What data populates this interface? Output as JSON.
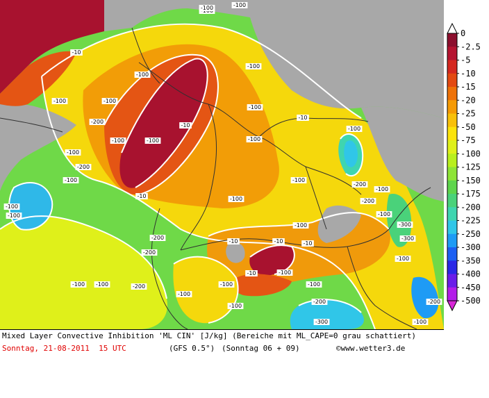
{
  "legend": {
    "labels": [
      "0",
      "-2.5",
      "-5",
      "-10",
      "-15",
      "-20",
      "-25",
      "-50",
      "-75",
      "-100",
      "-125",
      "-150",
      "-175",
      "-200",
      "-225",
      "-250",
      "-300",
      "-350",
      "-400",
      "-450",
      "-500"
    ],
    "colors": [
      "#8c0f2e",
      "#b51431",
      "#d42820",
      "#e34a12",
      "#ee7208",
      "#f59a05",
      "#f8c00a",
      "#fbe30b",
      "#dff01a",
      "#b8ef1e",
      "#8ee437",
      "#5ed54c",
      "#4ad27a",
      "#3fd5b0",
      "#30c6e8",
      "#1e9bf5",
      "#1c5ff2",
      "#2a28e6",
      "#6b1de8",
      "#b31de8",
      "#d826d8"
    ]
  },
  "map": {
    "contour_labels": [
      {
        "text": "-10"
      },
      {
        "text": "-100"
      },
      {
        "text": "-100"
      },
      {
        "text": "-100"
      },
      {
        "text": "-10"
      },
      {
        "text": "-100"
      },
      {
        "text": "-100"
      },
      {
        "text": "-200"
      },
      {
        "text": "-100"
      },
      {
        "text": "-10"
      },
      {
        "text": "-100"
      },
      {
        "text": "-100"
      },
      {
        "text": "-100"
      },
      {
        "text": "-100"
      },
      {
        "text": "-200"
      },
      {
        "text": "-100"
      },
      {
        "text": "-10"
      },
      {
        "text": "-100"
      },
      {
        "text": "-100"
      },
      {
        "text": "-100"
      },
      {
        "text": "-200"
      },
      {
        "text": "-200"
      },
      {
        "text": "-100"
      },
      {
        "text": "-200"
      },
      {
        "text": "-100"
      },
      {
        "text": "-10"
      },
      {
        "text": "-100"
      },
      {
        "text": "-100"
      },
      {
        "text": "-10"
      },
      {
        "text": "-100"
      },
      {
        "text": "-100"
      },
      {
        "text": "-200"
      },
      {
        "text": "-100"
      },
      {
        "text": "-100"
      },
      {
        "text": "-100"
      },
      {
        "text": "-10"
      },
      {
        "text": "-100"
      },
      {
        "text": "-100"
      },
      {
        "text": "-200"
      },
      {
        "text": "-300"
      },
      {
        "text": "-100"
      },
      {
        "text": "-300"
      },
      {
        "text": "-200"
      },
      {
        "text": "-300"
      },
      {
        "text": "-100"
      },
      {
        "text": "-100"
      },
      {
        "text": "-200"
      },
      {
        "text": "-100"
      },
      {
        "text": "-10"
      },
      {
        "text": "-100"
      }
    ]
  },
  "footer": {
    "line1": "Mixed Layer Convective Inhibition 'ML CIN' [J/kg] (Bereiche mit ML_CAPE=0 grau schattiert)",
    "date": "Sonntag, 21-08-2011  15 UTC",
    "model": "(GFS 0.5°)",
    "run": "(Sonntag 06 + 09)",
    "copyright": "©www.wetter3.de"
  }
}
